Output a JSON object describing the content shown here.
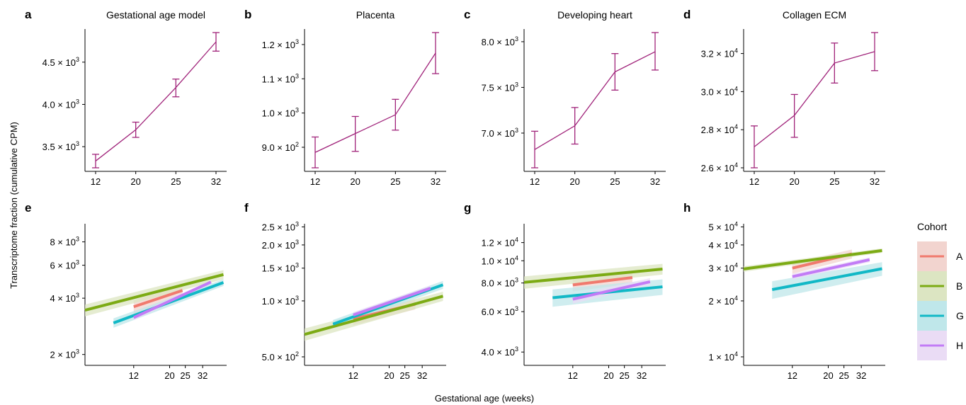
{
  "figure": {
    "ylabel": "Transcriptome fraction (cumulative CPM)",
    "xlabel": "Gestational age (weeks)"
  },
  "legend": {
    "title": "Cohort",
    "items": [
      {
        "label": "A",
        "color": "#F07A6E",
        "band": "#F2D4CF"
      },
      {
        "label": "B",
        "color": "#7CAB14",
        "band": "#DCE5C2"
      },
      {
        "label": "G",
        "color": "#11B8C6",
        "band": "#BFE7EA"
      },
      {
        "label": "H",
        "color": "#C27CF6",
        "band": "#EADCF5"
      }
    ]
  },
  "chart_data": [
    {
      "panel": "a",
      "title": "Gestational age model",
      "type": "line",
      "color": "#A0237A",
      "x": [
        12,
        20,
        25,
        32
      ],
      "y": [
        3330,
        3700,
        4200,
        4740
      ],
      "err_low": [
        3250,
        3610,
        4090,
        4630
      ],
      "err_high": [
        3410,
        3790,
        4300,
        4850
      ],
      "ylim": [
        3250,
        4850
      ],
      "yticks": [
        {
          "v": 3500,
          "m": "3.5",
          "e": "3"
        },
        {
          "v": 4000,
          "m": "4.0",
          "e": "3"
        },
        {
          "v": 4500,
          "m": "4.5",
          "e": "3"
        }
      ],
      "xticks": [
        12,
        20,
        25,
        32
      ]
    },
    {
      "panel": "b",
      "title": "Placenta",
      "type": "line",
      "color": "#A0237A",
      "x": [
        12,
        20,
        25,
        32
      ],
      "y": [
        885,
        940,
        995,
        1175
      ],
      "err_low": [
        840,
        888,
        950,
        1115
      ],
      "err_high": [
        930,
        990,
        1040,
        1235
      ],
      "ylim": [
        840,
        1235
      ],
      "yticks": [
        {
          "v": 900,
          "m": "9.0",
          "e": "2"
        },
        {
          "v": 1000,
          "m": "1.0",
          "e": "3"
        },
        {
          "v": 1100,
          "m": "1.1",
          "e": "3"
        },
        {
          "v": 1200,
          "m": "1.2",
          "e": "3"
        }
      ],
      "xticks": [
        12,
        20,
        25,
        32
      ]
    },
    {
      "panel": "c",
      "title": "Developing heart",
      "type": "line",
      "color": "#A0237A",
      "x": [
        12,
        20,
        25,
        32
      ],
      "y": [
        6820,
        7080,
        7670,
        7890
      ],
      "err_low": [
        6620,
        6880,
        7470,
        7690
      ],
      "err_high": [
        7020,
        7280,
        7870,
        8100
      ],
      "ylim": [
        6620,
        8100
      ],
      "yticks": [
        {
          "v": 7000,
          "m": "7.0",
          "e": "3"
        },
        {
          "v": 7500,
          "m": "7.5",
          "e": "3"
        },
        {
          "v": 8000,
          "m": "8.0",
          "e": "3"
        }
      ],
      "xticks": [
        12,
        20,
        25,
        32
      ]
    },
    {
      "panel": "d",
      "title": "Collagen ECM",
      "type": "line",
      "color": "#A0237A",
      "x": [
        12,
        20,
        25,
        32
      ],
      "y": [
        27100,
        28750,
        31500,
        32100
      ],
      "err_low": [
        26000,
        27600,
        30450,
        31100
      ],
      "err_high": [
        28200,
        29850,
        32550,
        33100
      ],
      "ylim": [
        26000,
        33100
      ],
      "yticks": [
        {
          "v": 26000,
          "m": "2.6",
          "e": "4"
        },
        {
          "v": 28000,
          "m": "2.8",
          "e": "4"
        },
        {
          "v": 30000,
          "m": "3.0",
          "e": "4"
        },
        {
          "v": 32000,
          "m": "3.2",
          "e": "4"
        }
      ],
      "xticks": [
        12,
        20,
        25,
        32
      ]
    },
    {
      "panel": "e",
      "title": "",
      "type": "line",
      "log_x": true,
      "log_y": true,
      "xlim": [
        6,
        45
      ],
      "ylim": [
        1750,
        10000
      ],
      "yticks": [
        {
          "v": 2000,
          "m": "2",
          "e": "3"
        },
        {
          "v": 4000,
          "m": "4",
          "e": "3"
        },
        {
          "v": 6000,
          "m": "6",
          "e": "3"
        },
        {
          "v": 8000,
          "m": "8",
          "e": "3"
        }
      ],
      "xticks": [
        12,
        20,
        25,
        32
      ],
      "series": [
        {
          "name": "A",
          "x": [
            12,
            24
          ],
          "y": [
            3600,
            4400
          ],
          "band": [
            300,
            300
          ]
        },
        {
          "name": "B",
          "x": [
            6,
            43
          ],
          "y": [
            3450,
            5350
          ],
          "band": [
            250,
            300
          ]
        },
        {
          "name": "G",
          "x": [
            9,
            43
          ],
          "y": [
            2950,
            4850
          ],
          "band": [
            170,
            200
          ]
        },
        {
          "name": "H",
          "x": [
            12,
            36
          ],
          "y": [
            3150,
            4880
          ],
          "band": [
            100,
            100
          ]
        }
      ]
    },
    {
      "panel": "f",
      "title": "",
      "type": "line",
      "log_x": true,
      "log_y": true,
      "xlim": [
        6,
        45
      ],
      "ylim": [
        450,
        2600
      ],
      "yticks": [
        {
          "v": 500,
          "m": "5.0",
          "e": "2"
        },
        {
          "v": 1000,
          "m": "1.0",
          "e": "3"
        },
        {
          "v": 1500,
          "m": "1.5",
          "e": "3"
        },
        {
          "v": 2000,
          "m": "2.0",
          "e": "3"
        },
        {
          "v": 2500,
          "m": "2.5",
          "e": "3"
        }
      ],
      "xticks": [
        12,
        20,
        25,
        32
      ],
      "series": [
        {
          "name": "A",
          "x": [
            12,
            29
          ],
          "y": [
            800,
            960
          ],
          "band": [
            60,
            60
          ]
        },
        {
          "name": "B",
          "x": [
            6,
            43
          ],
          "y": [
            660,
            1060
          ],
          "band": [
            50,
            60
          ]
        },
        {
          "name": "G",
          "x": [
            9,
            43
          ],
          "y": [
            750,
            1220
          ],
          "band": [
            40,
            60
          ]
        },
        {
          "name": "H",
          "x": [
            12,
            36
          ],
          "y": [
            840,
            1170
          ],
          "band": [
            30,
            40
          ]
        }
      ]
    },
    {
      "panel": "g",
      "title": "",
      "type": "line",
      "log_x": true,
      "log_y": true,
      "xlim": [
        6,
        45
      ],
      "ylim": [
        3500,
        14500
      ],
      "yticks": [
        {
          "v": 4000,
          "m": "4.0",
          "e": "3"
        },
        {
          "v": 6000,
          "m": "6.0",
          "e": "3"
        },
        {
          "v": 8000,
          "m": "8.0",
          "e": "3"
        },
        {
          "v": 10000,
          "m": "1.0",
          "e": "4"
        },
        {
          "v": 12000,
          "m": "1.2",
          "e": "4"
        }
      ],
      "xticks": [
        12,
        20,
        25,
        32
      ],
      "series": [
        {
          "name": "A",
          "x": [
            12,
            28
          ],
          "y": [
            7850,
            8450
          ],
          "band": [
            500,
            500
          ]
        },
        {
          "name": "B",
          "x": [
            6,
            43
          ],
          "y": [
            8050,
            9200
          ],
          "band": [
            500,
            500
          ]
        },
        {
          "name": "G",
          "x": [
            9,
            43
          ],
          "y": [
            6900,
            7700
          ],
          "band": [
            600,
            600
          ]
        },
        {
          "name": "H",
          "x": [
            12,
            36
          ],
          "y": [
            6800,
            8100
          ],
          "band": [
            300,
            300
          ]
        }
      ]
    },
    {
      "panel": "h",
      "title": "",
      "type": "line",
      "log_x": true,
      "log_y": true,
      "xlim": [
        6,
        45
      ],
      "ylim": [
        9000,
        52000
      ],
      "yticks": [
        {
          "v": 10000,
          "m": "1",
          "e": "4"
        },
        {
          "v": 20000,
          "m": "2",
          "e": "4"
        },
        {
          "v": 30000,
          "m": "3",
          "e": "4"
        },
        {
          "v": 40000,
          "m": "4",
          "e": "4"
        },
        {
          "v": 50000,
          "m": "5",
          "e": "4"
        }
      ],
      "xticks": [
        12,
        20,
        25,
        32
      ],
      "series": [
        {
          "name": "A",
          "x": [
            12,
            28
          ],
          "y": [
            30000,
            35800
          ],
          "band": [
            2000,
            2000
          ]
        },
        {
          "name": "B",
          "x": [
            6,
            43
          ],
          "y": [
            29700,
            37300
          ],
          "band": [
            1000,
            1000
          ]
        },
        {
          "name": "G",
          "x": [
            9,
            43
          ],
          "y": [
            23000,
            29800
          ],
          "band": [
            2500,
            2500
          ]
        },
        {
          "name": "H",
          "x": [
            12,
            36
          ],
          "y": [
            27000,
            33300
          ],
          "band": [
            1000,
            1000
          ]
        }
      ]
    }
  ]
}
